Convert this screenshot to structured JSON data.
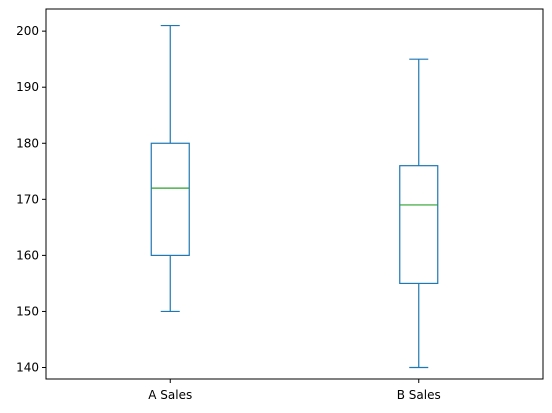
{
  "chart_data": {
    "type": "box",
    "title": "",
    "xlabel": "",
    "ylabel": "",
    "categories": [
      "A Sales",
      "B Sales"
    ],
    "boxes": [
      {
        "category": "A Sales",
        "whisker_low": 150,
        "q1": 160,
        "median": 172,
        "q3": 180,
        "whisker_high": 201
      },
      {
        "category": "B Sales",
        "whisker_low": 140,
        "q1": 155,
        "median": 169,
        "q3": 176,
        "whisker_high": 195
      }
    ],
    "ylim": [
      137.95,
      203.95
    ],
    "yticks": [
      140,
      150,
      160,
      170,
      180,
      190,
      200
    ],
    "grid": false,
    "legend": "none",
    "colors": {
      "box": "#1f77b4",
      "median": "#2ca02c",
      "axis": "#000000"
    }
  }
}
